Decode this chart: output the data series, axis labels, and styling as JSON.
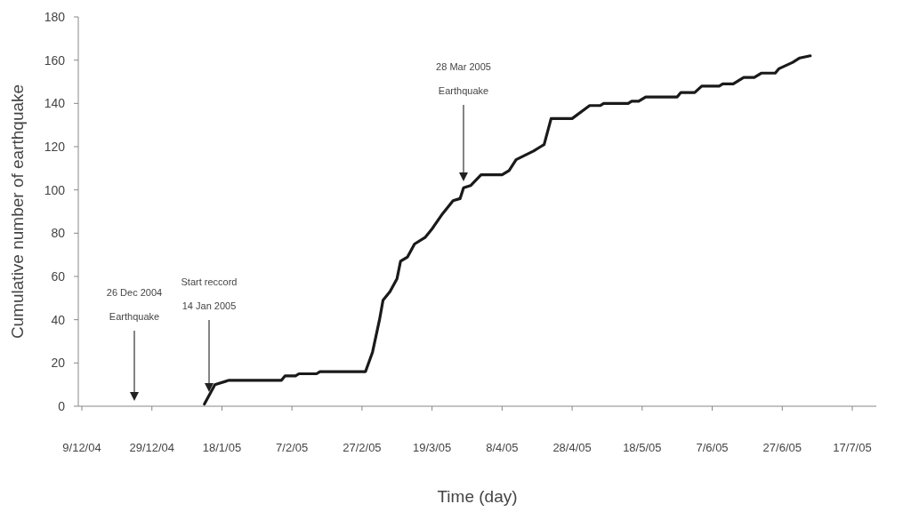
{
  "chart_data": {
    "type": "line",
    "xlabel": "Time (day)",
    "ylabel": "Cumulative number of earthquake",
    "x": [
      "2005-01-13",
      "2005-01-16",
      "2005-01-20",
      "2005-02-04",
      "2005-02-05",
      "2005-02-08",
      "2005-02-09",
      "2005-02-14",
      "2005-02-15",
      "2005-02-28",
      "2005-03-02",
      "2005-03-04",
      "2005-03-05",
      "2005-03-07",
      "2005-03-09",
      "2005-03-10",
      "2005-03-12",
      "2005-03-14",
      "2005-03-17",
      "2005-03-19",
      "2005-03-22",
      "2005-03-25",
      "2005-03-27",
      "2005-03-28",
      "2005-03-30",
      "2005-04-02",
      "2005-04-08",
      "2005-04-10",
      "2005-04-12",
      "2005-04-17",
      "2005-04-19",
      "2005-04-20",
      "2005-04-22",
      "2005-04-28",
      "2005-05-03",
      "2005-05-06",
      "2005-05-07",
      "2005-05-14",
      "2005-05-15",
      "2005-05-17",
      "2005-05-19",
      "2005-05-28",
      "2005-05-29",
      "2005-06-02",
      "2005-06-04",
      "2005-06-09",
      "2005-06-10",
      "2005-06-13",
      "2005-06-16",
      "2005-06-19",
      "2005-06-21",
      "2005-06-25",
      "2005-06-26",
      "2005-06-30",
      "2005-07-02",
      "2005-07-05"
    ],
    "series": [
      {
        "color": "#1a1a1a",
        "values": [
          1,
          10,
          12,
          12,
          14,
          14,
          15,
          15,
          16,
          16,
          25,
          40,
          49,
          53,
          59,
          67,
          69,
          75,
          78,
          82,
          89,
          95,
          96,
          101,
          102,
          107,
          107,
          109,
          114,
          118,
          120,
          121,
          133,
          133,
          139,
          139,
          140,
          140,
          141,
          141,
          143,
          143,
          145,
          145,
          148,
          148,
          149,
          149,
          152,
          152,
          154,
          154,
          156,
          159,
          161,
          162
        ]
      }
    ],
    "xlim": [
      "2004-12-09",
      "2005-07-17"
    ],
    "xticks": [
      {
        "value": "2004-12-09",
        "label": "9/12/04"
      },
      {
        "value": "2004-12-29",
        "label": "29/12/04"
      },
      {
        "value": "2005-01-18",
        "label": "18/1/05"
      },
      {
        "value": "2005-02-07",
        "label": "7/2/05"
      },
      {
        "value": "2005-02-27",
        "label": "27/2/05"
      },
      {
        "value": "2005-03-19",
        "label": "19/3/05"
      },
      {
        "value": "2005-04-08",
        "label": "8/4/05"
      },
      {
        "value": "2005-04-28",
        "label": "28/4/05"
      },
      {
        "value": "2005-05-18",
        "label": "18/5/05"
      },
      {
        "value": "2005-06-07",
        "label": "7/6/05"
      },
      {
        "value": "2005-06-27",
        "label": "27/6/05"
      },
      {
        "value": "2005-07-17",
        "label": "17/7/05"
      }
    ],
    "ylim": [
      0,
      180
    ],
    "yticks": [
      0,
      20,
      40,
      60,
      80,
      100,
      120,
      140,
      160,
      180
    ],
    "annotations": [
      "26 Dec 2004",
      "Earthquake",
      "Start reccord",
      "14 Jan 2005",
      "28 Mar 2005",
      "Earthquake"
    ],
    "grid": false,
    "marker": "none",
    "line_style": "solid"
  }
}
